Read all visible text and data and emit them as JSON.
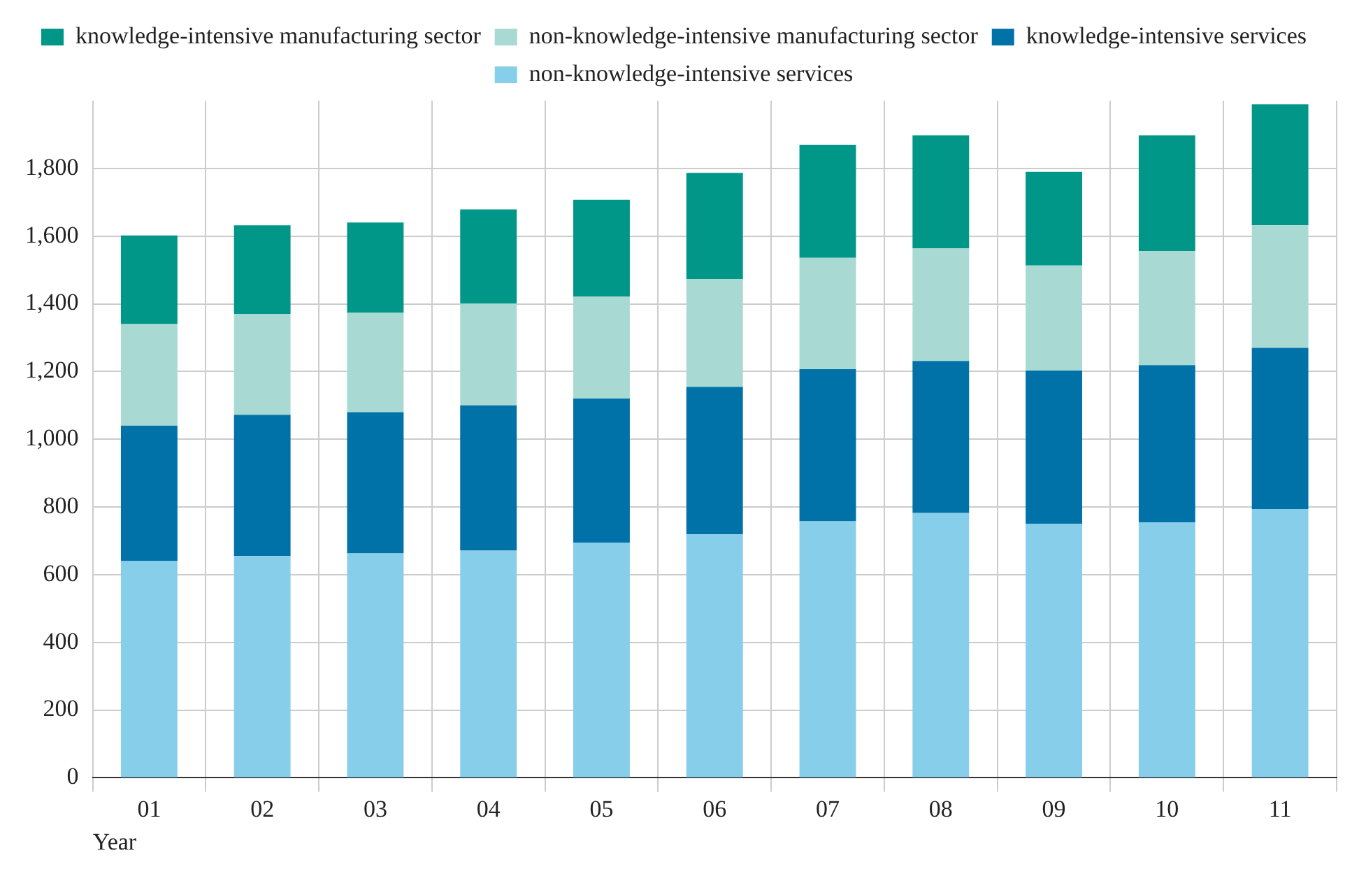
{
  "chart_data": {
    "type": "bar",
    "stacked": true,
    "xlabel": "Year",
    "categories": [
      "01",
      "02",
      "03",
      "04",
      "05",
      "06",
      "07",
      "08",
      "09",
      "10",
      "11"
    ],
    "series": [
      {
        "name": "non-knowledge-intensive services",
        "color": "#87ceeb",
        "values": [
          640,
          655,
          663,
          671,
          695,
          719,
          758,
          782,
          750,
          754,
          794
        ]
      },
      {
        "name": "knowledge-intensive services",
        "color": "#0072a8",
        "values": [
          400,
          417,
          417,
          429,
          425,
          436,
          449,
          449,
          453,
          465,
          476
        ]
      },
      {
        "name": "non-knowledge-intensive manufacturing sector",
        "color": "#a8dad3",
        "values": [
          300,
          298,
          294,
          301,
          301,
          318,
          329,
          333,
          310,
          337,
          362
        ]
      },
      {
        "name": "knowledge-intensive manufacturing sector",
        "color": "#009688",
        "values": [
          262,
          262,
          266,
          278,
          286,
          314,
          334,
          334,
          277,
          342,
          357
        ]
      }
    ],
    "ylim": [
      0,
      2000
    ],
    "yticks": [
      0,
      200,
      400,
      600,
      800,
      {
        "value": 1000,
        "label": "1,000"
      },
      {
        "value": 1200,
        "label": "1,200"
      },
      {
        "value": 1400,
        "label": "1,400"
      },
      {
        "value": 1600,
        "label": "1,600"
      },
      {
        "value": 1800,
        "label": "1,800"
      }
    ],
    "grid": true,
    "legend": "top"
  }
}
